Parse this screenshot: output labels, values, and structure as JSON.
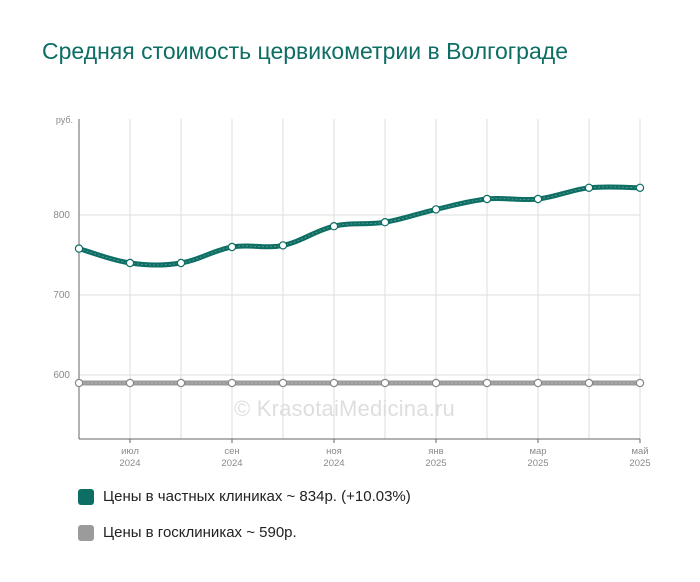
{
  "chart_data": {
    "type": "line",
    "title": "Средняя стоимость цервикометрии в Волгограде",
    "y_unit_label": "руб.",
    "ylim": [
      520,
      920
    ],
    "y_ticks": [
      600,
      700,
      800
    ],
    "x_ticks": [
      {
        "month": "июл",
        "year": "2024",
        "index": 1
      },
      {
        "month": "сен",
        "year": "2024",
        "index": 3
      },
      {
        "month": "ноя",
        "year": "2024",
        "index": 5
      },
      {
        "month": "янв",
        "year": "2025",
        "index": 7
      },
      {
        "month": "мар",
        "year": "2025",
        "index": 9
      },
      {
        "month": "май",
        "year": "2025",
        "index": 11
      }
    ],
    "x": [
      "2024-06",
      "2024-07",
      "2024-08",
      "2024-09",
      "2024-10",
      "2024-11",
      "2024-12",
      "2025-01",
      "2025-02",
      "2025-03",
      "2025-04",
      "2025-05"
    ],
    "series": [
      {
        "name": "Цены в частных клиниках",
        "color": "#0d6e64",
        "values": [
          758,
          740,
          740,
          760,
          762,
          786,
          791,
          807,
          820,
          820,
          834,
          834
        ]
      },
      {
        "name": "Цены в госклиниках",
        "color": "#9b9b9b",
        "values": [
          590,
          590,
          590,
          590,
          590,
          590,
          590,
          590,
          590,
          590,
          590,
          590
        ]
      }
    ],
    "grid": true
  },
  "legend": {
    "private": {
      "text": "Цены в частных клиниках ~ 834р. (+10.03%)",
      "color": "#0d6e64"
    },
    "public": {
      "text": "Цены в госклиниках ~ 590р.",
      "color": "#9b9b9b"
    }
  },
  "watermark": "© KrasotaiMedicina.ru"
}
